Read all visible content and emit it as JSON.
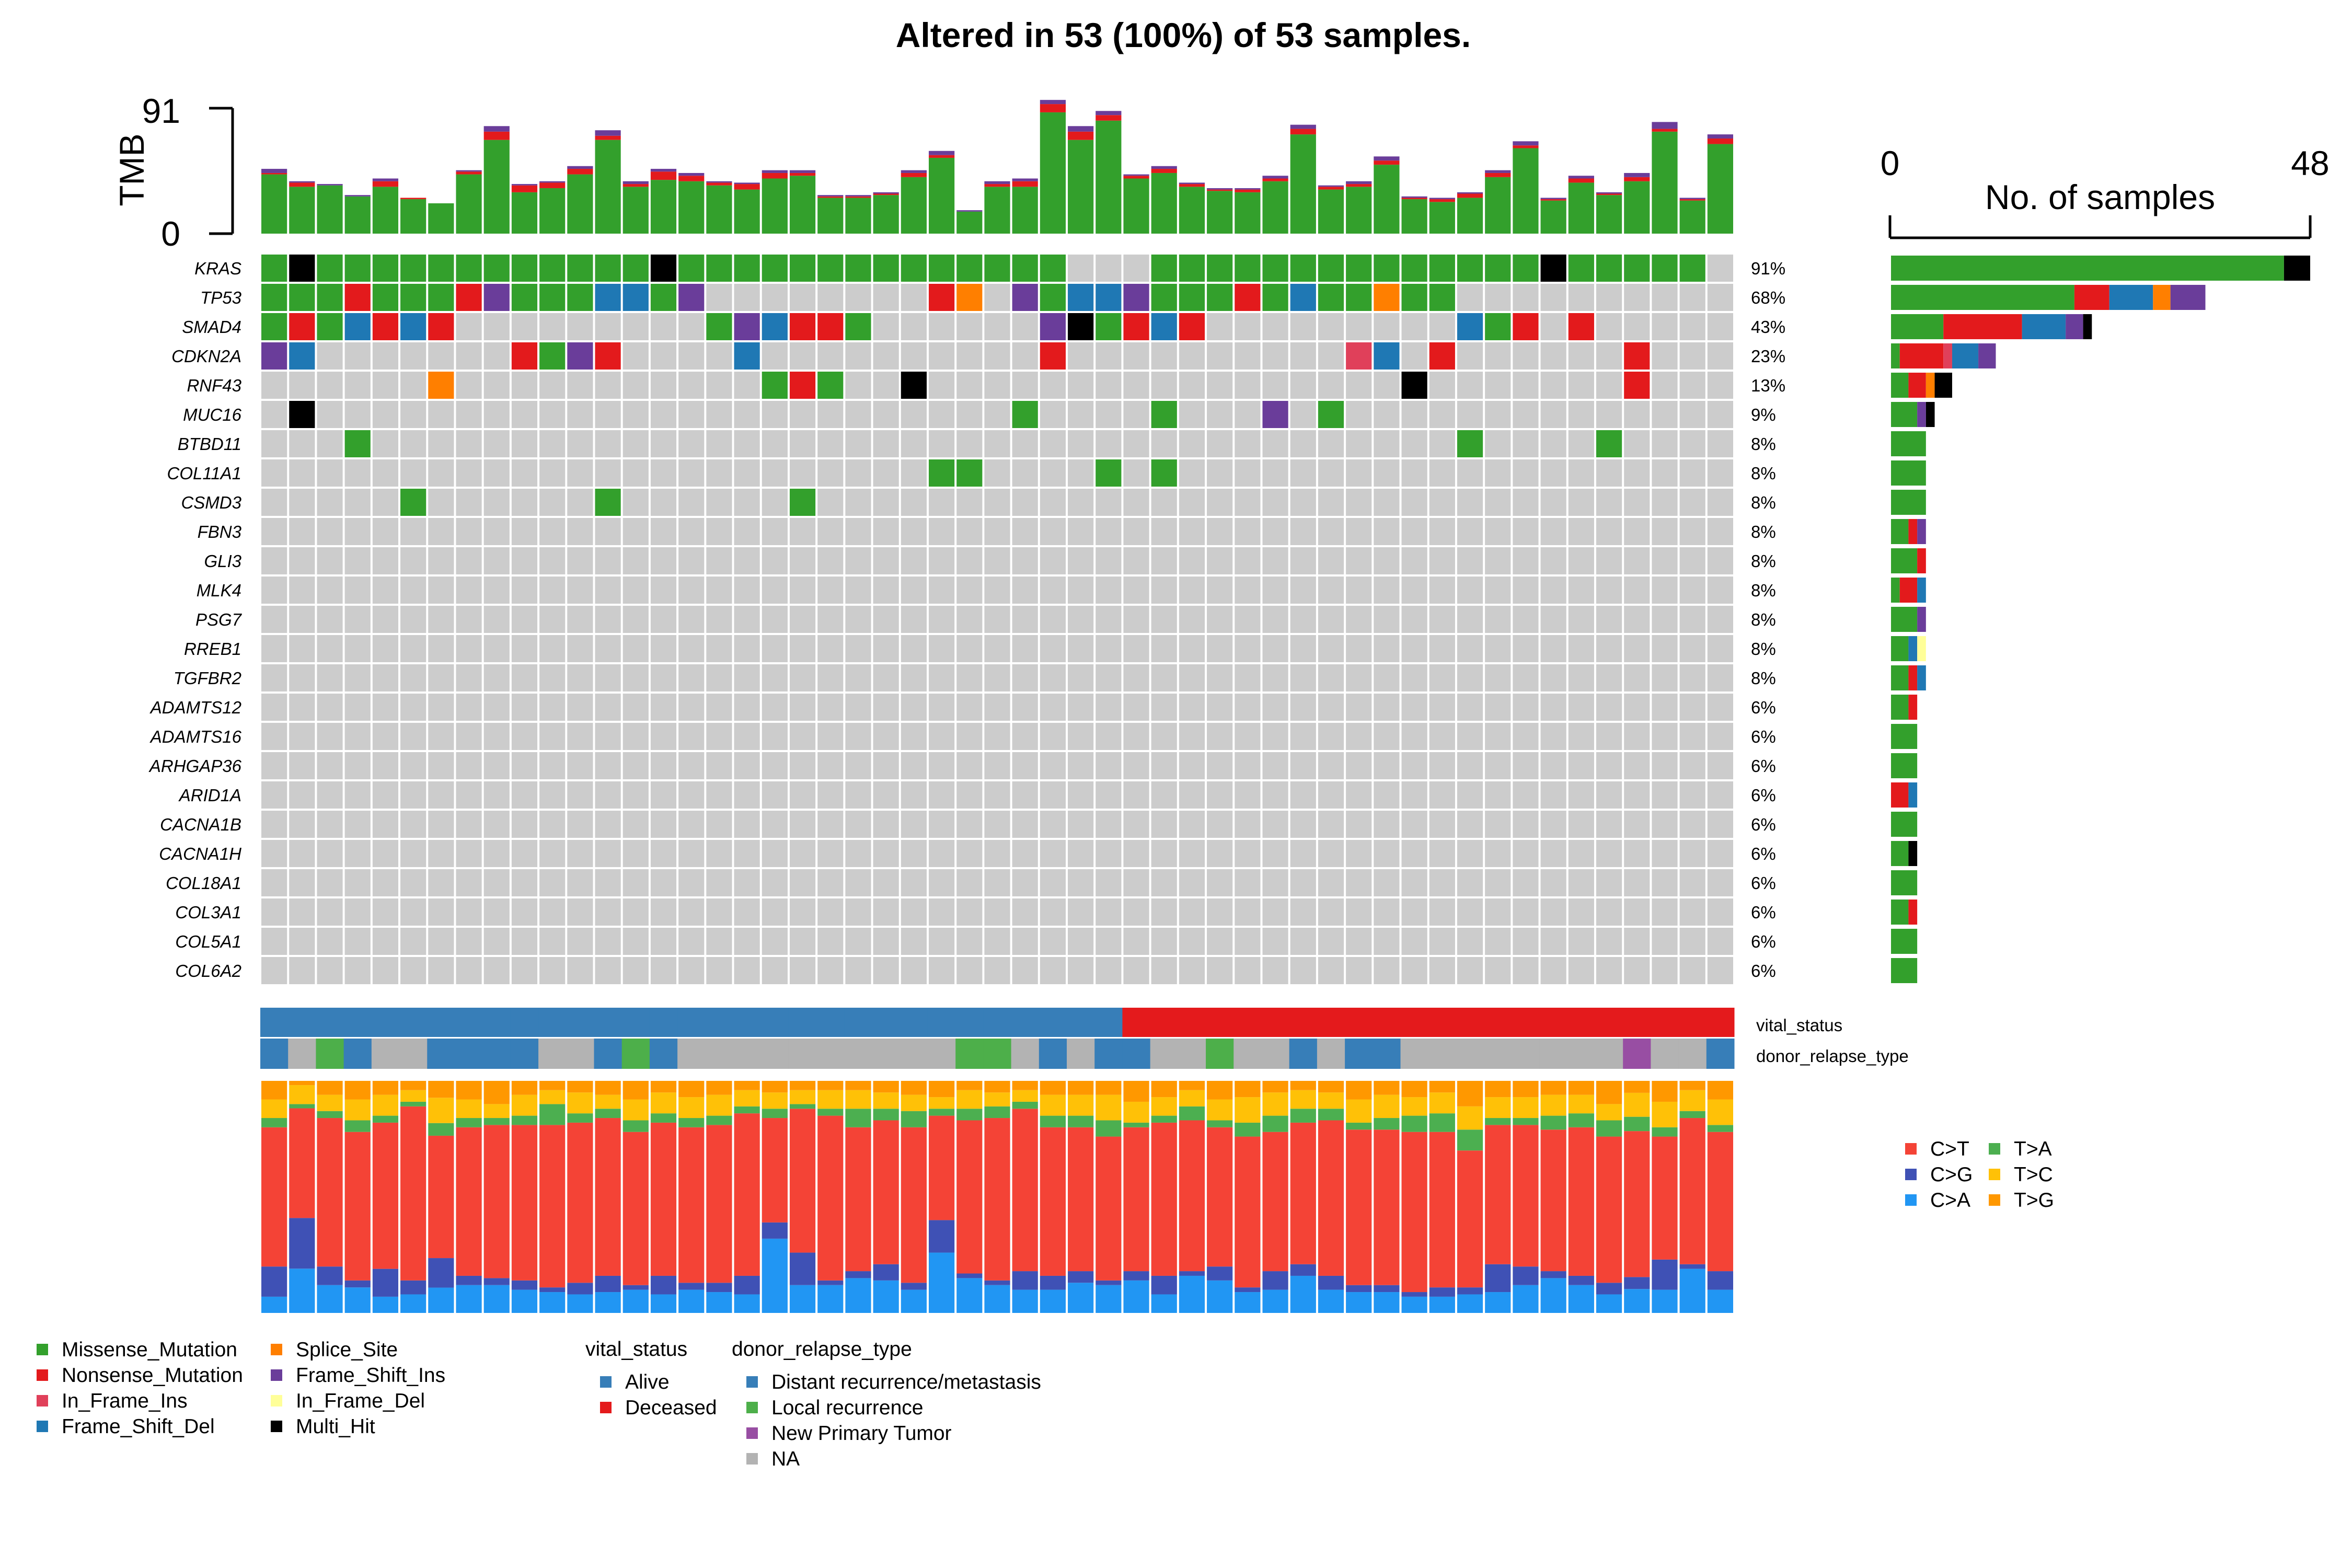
{
  "title": "Altered in 53 (100%) of 53 samples.",
  "colors": {
    "Missense_Mutation": "#33A02C",
    "Nonsense_Mutation": "#E31A1C",
    "In_Frame_Ins": "#E0405A",
    "Frame_Shift_Del": "#1F78B4",
    "Splice_Site": "#FF7F00",
    "Frame_Shift_Ins": "#6A3D9A",
    "In_Frame_Del": "#FFFF99",
    "Multi_Hit": "#000000",
    "background": "#CCCCCC",
    "Alive": "#377EB8",
    "Deceased": "#E41A1C",
    "Distant recurrence/metastasis": "#377EB8",
    "Local recurrence": "#4DAF4A",
    "New Primary Tumor": "#984EA3",
    "NA": "#B3B3B3",
    "C>T": "#F44336",
    "C>G": "#3F51B5",
    "C>A": "#2196F3",
    "T>A": "#4CAF50",
    "T>C": "#FFC107",
    "T>G": "#FF9800"
  },
  "tmb_axis": {
    "label": "TMB",
    "max_label": "91",
    "min_label": "0"
  },
  "side_axis": {
    "label": "No. of samples",
    "min_label": "0",
    "max_label": "48"
  },
  "legends": {
    "variant_classification": {
      "col1": [
        "Missense_Mutation",
        "Nonsense_Mutation",
        "In_Frame_Ins",
        "Frame_Shift_Del"
      ],
      "col2": [
        "Splice_Site",
        "Frame_Shift_Ins",
        "In_Frame_Del",
        "Multi_Hit"
      ]
    },
    "vital_status": {
      "title": "vital_status",
      "items": [
        "Alive",
        "Deceased"
      ]
    },
    "donor_relapse_type": {
      "title": "donor_relapse_type",
      "items": [
        "Distant recurrence/metastasis",
        "Local recurrence",
        "New Primary Tumor",
        "NA"
      ]
    },
    "titv": {
      "col1": [
        "C>T",
        "C>G",
        "C>A"
      ],
      "col2": [
        "T>A",
        "T>C",
        "T>G"
      ]
    }
  },
  "chart_data": {
    "type": "heatmap",
    "title": "Altered in 53 (100%) of 53 samples.",
    "n_samples": 53,
    "genes": [
      "KRAS",
      "TP53",
      "SMAD4",
      "CDKN2A",
      "RNF43",
      "MUC16",
      "BTBD11",
      "COL11A1",
      "CSMD3",
      "FBN3",
      "GLI3",
      "MLK4",
      "PSG7",
      "RREB1",
      "TGFBR2",
      "ADAMTS12",
      "ADAMTS16",
      "ARHGAP36",
      "ARID1A",
      "CACNA1B",
      "CACNA1H",
      "COL18A1",
      "COL3A1",
      "COL5A1",
      "COL6A2"
    ],
    "percent_labels": [
      "91%",
      "68%",
      "43%",
      "23%",
      "13%",
      "9%",
      "8%",
      "8%",
      "8%",
      "8%",
      "8%",
      "8%",
      "8%",
      "8%",
      "8%",
      "6%",
      "6%",
      "6%",
      "6%",
      "6%",
      "6%",
      "6%",
      "6%",
      "6%",
      "6%"
    ],
    "code_key": {
      "M": "Missense_Mutation",
      "N": "Nonsense_Mutation",
      "I": "In_Frame_Ins",
      "D": "Frame_Shift_Del",
      "S": "Splice_Site",
      "F": "Frame_Shift_Ins",
      "E": "In_Frame_Del",
      "X": "Multi_Hit",
      ".": "none"
    },
    "matrix": [
      "MXMMMMMMMMMMMMXMMMMMMMMMMMMMM...MMMMMMMMMMMMMMXMMMMM.",
      "MMMNMMMNFMMMDDMF........NS.FMDDFMMMNMDMMSMM..........",
      "MNMDNDN.........MFDNNM......FXMNDN.........DMN.N.....",
      "FD.......NMFN....D..........N..........ID.N......N...",
      "......S...........MNM..X.................X.......N...",
      ".X.........................M....M...F.M..............",
      "...M.......................................M....M....",
      "........................MM....M.M........................",
      ".....M......M......M.................................M",
      "..........................................................",
      "..........................................................",
      "..........................................................",
      "..........................................................",
      "..........................................................",
      "..........................................................",
      "..........................................................",
      "..........................................................",
      "..........................................................",
      "..........................................................",
      "..........................................................",
      "..........................................................",
      "..........................................................",
      "..........................................................",
      "..........................................................",
      ".........................................................."
    ],
    "tmb": {
      "ylim": [
        0,
        91
      ],
      "missense": [
        43,
        34,
        35,
        27,
        34,
        25,
        22,
        43,
        68,
        30,
        33,
        43,
        68,
        34,
        39,
        38,
        35,
        32,
        40,
        42,
        26,
        26,
        28,
        41,
        55,
        16,
        34,
        34,
        88,
        68,
        82,
        40,
        44,
        34,
        31,
        30,
        38,
        72,
        32,
        34,
        50,
        25,
        23,
        26,
        41,
        62,
        24,
        37,
        28,
        38,
        74,
        24,
        65
      ],
      "nonsense": [
        1,
        3,
        0,
        0,
        4,
        1,
        0,
        2,
        6,
        5,
        4,
        4,
        3,
        2,
        6,
        4,
        2,
        4,
        4,
        2,
        1,
        1,
        1,
        3,
        2,
        0,
        2,
        4,
        6,
        6,
        4,
        2,
        3,
        2,
        1,
        2,
        2,
        4,
        2,
        2,
        3,
        1,
        2,
        3,
        3,
        2,
        1,
        3,
        1,
        3,
        2,
        1,
        4
      ],
      "other": [
        3,
        1,
        1,
        1,
        2,
        0,
        0,
        1,
        4,
        1,
        1,
        2,
        4,
        2,
        2,
        2,
        1,
        1,
        2,
        2,
        1,
        1,
        1,
        2,
        3,
        1,
        2,
        2,
        3,
        4,
        3,
        1,
        2,
        1,
        1,
        1,
        2,
        3,
        1,
        2,
        3,
        1,
        1,
        1,
        2,
        3,
        1,
        2,
        1,
        3,
        5,
        1,
        3
      ]
    },
    "gene_bars": {
      "xlim": [
        0,
        48
      ],
      "values": [
        48,
        36,
        23,
        12,
        7,
        5,
        4,
        4,
        4,
        4,
        4,
        4,
        4,
        4,
        4,
        3,
        3,
        3,
        3,
        3,
        3,
        3,
        3,
        3,
        3
      ],
      "missense": [
        45,
        21,
        6,
        1,
        2,
        3,
        4,
        4,
        4,
        2,
        3,
        1,
        3,
        2,
        2,
        2,
        3,
        3,
        0,
        3,
        2,
        3,
        2,
        3,
        3
      ],
      "nonsense": [
        0,
        4,
        9,
        5,
        2,
        0,
        0,
        0,
        0,
        1,
        1,
        2,
        0,
        0,
        1,
        1,
        0,
        0,
        2,
        0,
        0,
        0,
        1,
        0,
        0
      ],
      "inframe_ins": [
        0,
        0,
        0,
        1,
        0,
        0,
        0,
        0,
        0,
        0,
        0,
        0,
        0,
        0,
        0,
        0,
        0,
        0,
        0,
        0,
        0,
        0,
        0,
        0,
        0
      ],
      "frameshift_del": [
        0,
        5,
        5,
        3,
        0,
        0,
        0,
        0,
        0,
        0,
        0,
        1,
        0,
        1,
        1,
        0,
        0,
        0,
        1,
        0,
        0,
        0,
        0,
        0,
        0
      ],
      "splice": [
        0,
        2,
        0,
        0,
        1,
        0,
        0,
        0,
        0,
        0,
        0,
        0,
        0,
        0,
        0,
        0,
        0,
        0,
        0,
        0,
        0,
        0,
        0,
        0,
        0
      ],
      "frameshift_ins": [
        0,
        4,
        2,
        2,
        0,
        1,
        0,
        0,
        0,
        1,
        0,
        0,
        1,
        0,
        0,
        0,
        0,
        0,
        0,
        0,
        0,
        0,
        0,
        0,
        0
      ],
      "inframe_del": [
        0,
        0,
        0,
        0,
        0,
        0,
        0,
        0,
        0,
        0,
        0,
        0,
        0,
        1,
        0,
        0,
        0,
        0,
        0,
        0,
        0,
        0,
        0,
        0,
        0
      ],
      "multi_hit": [
        3,
        0,
        1,
        0,
        2,
        1,
        0,
        0,
        0,
        0,
        0,
        0,
        0,
        0,
        0,
        0,
        0,
        0,
        0,
        0,
        1,
        0,
        0,
        0,
        0
      ]
    },
    "vital_status": "AAAAAAAAAAAAAAAAAAAAAAAAAAAAAAADDDDDDDDDDDDDDDDDDDDDD",
    "donor_relapse_type": "DNLDNNDDDDNNDLDNNNNNNNNNNLLNDNDDNNLNNDNDDNNNNNNNNPNNDD",
    "titv": {
      "C>A": [
        7,
        21,
        12,
        11,
        7,
        8,
        12,
        12,
        12,
        10,
        9,
        8,
        9,
        10,
        8,
        10,
        9,
        8,
        32,
        12,
        12,
        15,
        14,
        10,
        26,
        15,
        12,
        10,
        10,
        13,
        12,
        14,
        8,
        16,
        14,
        9,
        10,
        16,
        10,
        9,
        9,
        7,
        7,
        8,
        9,
        12,
        15,
        12,
        8,
        10,
        10,
        19,
        10
      ],
      "C>G": [
        13,
        24,
        8,
        3,
        12,
        6,
        14,
        4,
        3,
        4,
        2,
        5,
        7,
        2,
        8,
        3,
        4,
        8,
        7,
        14,
        2,
        3,
        7,
        3,
        14,
        2,
        2,
        8,
        6,
        5,
        2,
        4,
        8,
        2,
        6,
        2,
        8,
        5,
        6,
        3,
        3,
        2,
        4,
        3,
        12,
        8,
        3,
        4,
        5,
        5,
        13,
        2,
        8
      ],
      "C>T": [
        60,
        52,
        64,
        64,
        63,
        75,
        58,
        64,
        66,
        67,
        70,
        69,
        68,
        66,
        66,
        67,
        68,
        70,
        45,
        62,
        71,
        62,
        62,
        67,
        45,
        66,
        70,
        70,
        64,
        62,
        62,
        62,
        66,
        65,
        60,
        65,
        60,
        61,
        67,
        67,
        67,
        69,
        67,
        59,
        60,
        61,
        61,
        64,
        63,
        61,
        53,
        63,
        60
      ],
      "T>A": [
        4,
        2,
        3,
        5,
        3,
        2,
        6,
        4,
        3,
        4,
        9,
        4,
        4,
        5,
        4,
        4,
        4,
        3,
        4,
        2,
        3,
        8,
        5,
        7,
        3,
        5,
        5,
        3,
        5,
        5,
        7,
        2,
        3,
        6,
        3,
        6,
        7,
        6,
        5,
        3,
        5,
        7,
        8,
        9,
        3,
        3,
        6,
        6,
        7,
        6,
        4,
        3,
        3
      ],
      "T>C": [
        8,
        9,
        7,
        9,
        9,
        5,
        12,
        8,
        6,
        9,
        6,
        9,
        6,
        9,
        9,
        9,
        9,
        7,
        7,
        6,
        8,
        8,
        7,
        7,
        5,
        8,
        6,
        5,
        9,
        9,
        11,
        9,
        8,
        7,
        9,
        11,
        10,
        8,
        7,
        10,
        10,
        8,
        9,
        10,
        9,
        9,
        9,
        8,
        7,
        10,
        11,
        9,
        11
      ],
      "T>G": [
        8,
        2,
        6,
        8,
        6,
        4,
        8,
        8,
        10,
        6,
        4,
        5,
        6,
        8,
        5,
        7,
        6,
        4,
        5,
        4,
        4,
        4,
        5,
        6,
        7,
        4,
        5,
        4,
        6,
        6,
        6,
        9,
        7,
        4,
        8,
        7,
        5,
        4,
        5,
        8,
        6,
        7,
        5,
        11,
        7,
        7,
        6,
        6,
        10,
        5,
        9,
        4,
        8
      ]
    }
  }
}
